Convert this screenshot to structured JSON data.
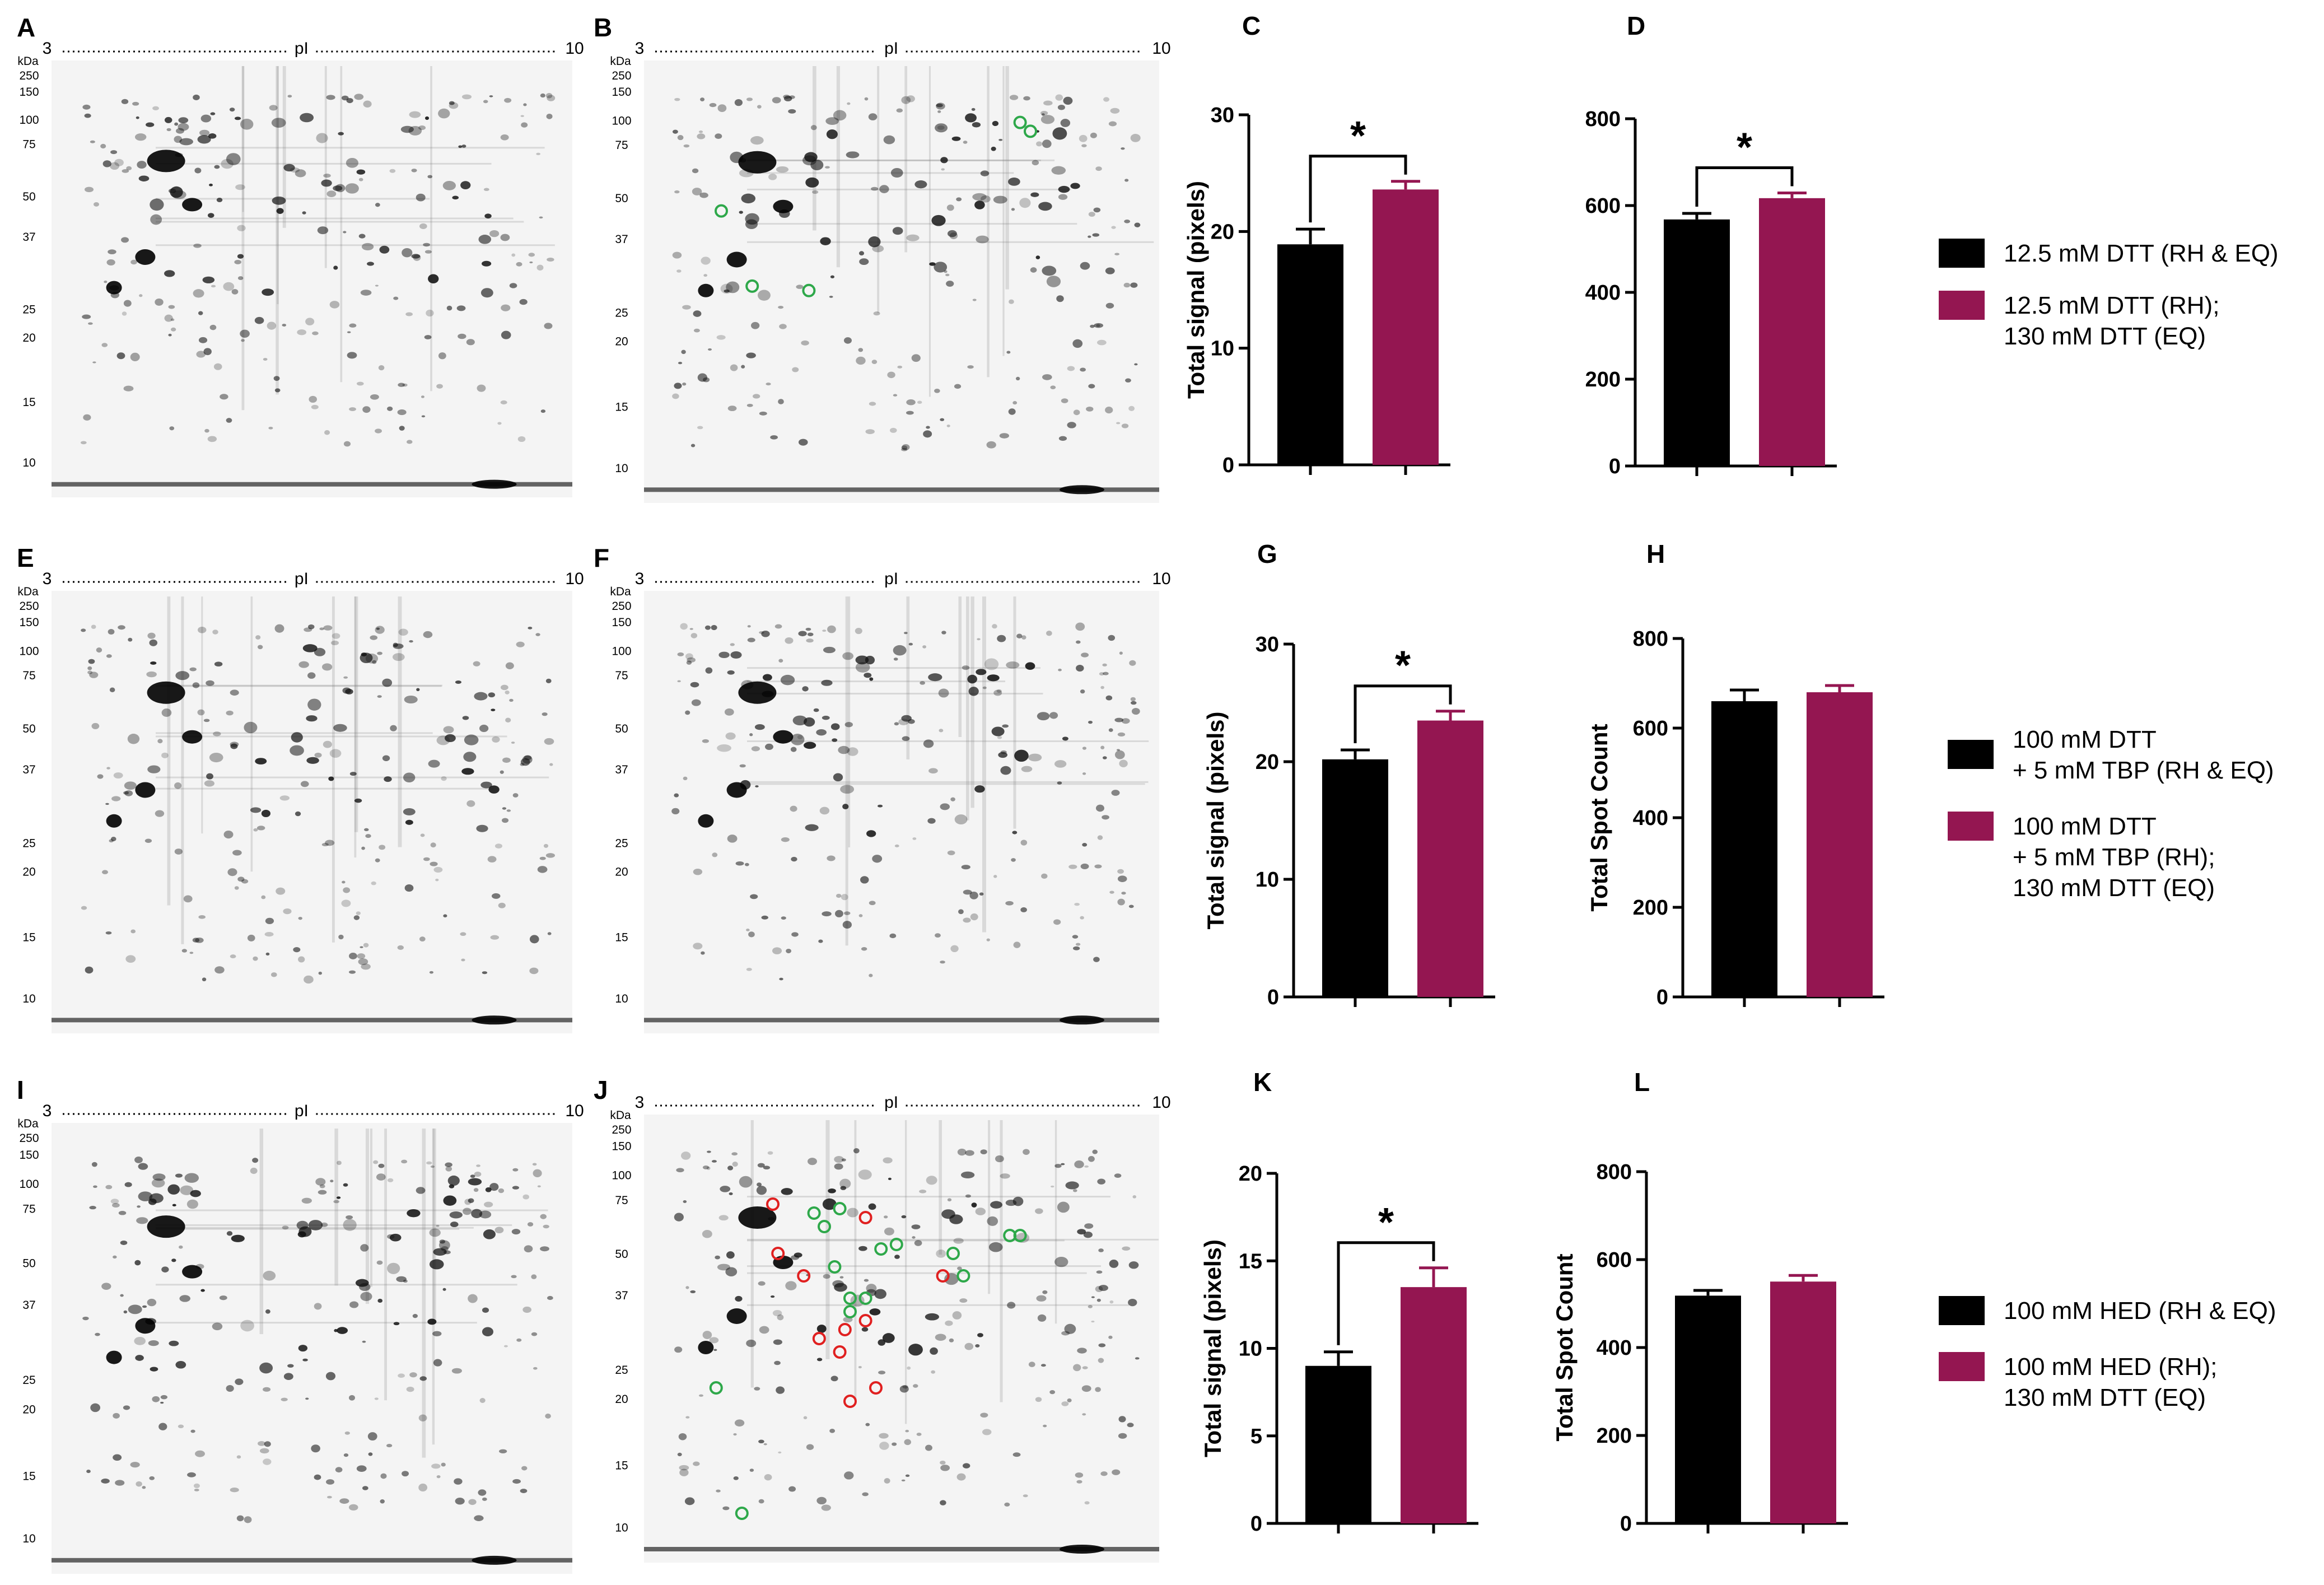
{
  "colors": {
    "black_bar": "#000000",
    "maroon_bar": "#941651",
    "green_circle": "#2ea84a",
    "red_circle": "#e02020"
  },
  "gels": [
    {
      "id": "A",
      "letter": "A",
      "pi_start": "3",
      "pi_label": "pI",
      "pi_end": "10",
      "kda_label": "kDa",
      "mw": [
        "250",
        "150",
        "100",
        "75",
        "50",
        "37",
        "25",
        "20",
        "15",
        "10"
      ]
    },
    {
      "id": "B",
      "letter": "B",
      "pi_start": "3",
      "pi_label": "pI",
      "pi_end": "10",
      "kda_label": "kDa",
      "mw": [
        "250",
        "150",
        "100",
        "75",
        "50",
        "37",
        "25",
        "20",
        "15",
        "10"
      ]
    },
    {
      "id": "E",
      "letter": "E",
      "pi_start": "3",
      "pi_label": "pI",
      "pi_end": "10",
      "kda_label": "kDa",
      "mw": [
        "250",
        "150",
        "100",
        "75",
        "50",
        "37",
        "25",
        "20",
        "15",
        "10"
      ]
    },
    {
      "id": "F",
      "letter": "F",
      "pi_start": "3",
      "pi_label": "pI",
      "pi_end": "10",
      "kda_label": "kDa",
      "mw": [
        "250",
        "150",
        "100",
        "75",
        "50",
        "37",
        "25",
        "20",
        "15",
        "10"
      ]
    },
    {
      "id": "I",
      "letter": "I",
      "pi_start": "3",
      "pi_label": "pI",
      "pi_end": "10",
      "kda_label": "kDa",
      "mw": [
        "250",
        "150",
        "100",
        "75",
        "50",
        "37",
        "25",
        "20",
        "15",
        "10"
      ]
    },
    {
      "id": "J",
      "letter": "J",
      "pi_start": "3",
      "pi_label": "pI",
      "pi_end": "10",
      "kda_label": "kDa",
      "mw": [
        "250",
        "150",
        "100",
        "75",
        "50",
        "37",
        "25",
        "20",
        "15",
        "10"
      ]
    }
  ],
  "chart_data": [
    {
      "id": "C",
      "letter": "C",
      "type": "bar",
      "ylabel": "Total signal (pixels)",
      "ylim": [
        0,
        30
      ],
      "yticks": [
        0,
        10,
        20,
        30
      ],
      "categories": [
        "12.5 mM DTT (RH & EQ)",
        "12.5 mM DTT (RH); 130 mM DTT (EQ)"
      ],
      "values": [
        18.9,
        23.6
      ],
      "errors": [
        1.3,
        0.7
      ],
      "significance": "*"
    },
    {
      "id": "D",
      "letter": "D",
      "type": "bar",
      "ylabel": "",
      "ylim": [
        0,
        800
      ],
      "yticks": [
        0,
        200,
        400,
        600,
        800
      ],
      "categories": [
        "12.5 mM DTT (RH & EQ)",
        "12.5 mM DTT (RH); 130 mM DTT (EQ)"
      ],
      "values": [
        568,
        617
      ],
      "errors": [
        14,
        12
      ],
      "significance": "*"
    },
    {
      "id": "G",
      "letter": "G",
      "type": "bar",
      "ylabel": "Total signal (pixels)",
      "ylim": [
        0,
        30
      ],
      "yticks": [
        0,
        10,
        20,
        30
      ],
      "categories": [
        "100 mM DTT + 5 mM TBP (RH & EQ)",
        "100 mM DTT + 5 mM TBP (RH); 130 mM DTT (EQ)"
      ],
      "values": [
        20.2,
        23.5
      ],
      "errors": [
        0.8,
        0.8
      ],
      "significance": "*"
    },
    {
      "id": "H",
      "letter": "H",
      "type": "bar",
      "ylabel": "Total Spot Count",
      "ylim": [
        0,
        800
      ],
      "yticks": [
        0,
        200,
        400,
        600,
        800
      ],
      "categories": [
        "100 mM DTT + 5 mM TBP (RH & EQ)",
        "100 mM DTT + 5 mM TBP (RH); 130 mM DTT (EQ)"
      ],
      "values": [
        660,
        680
      ],
      "errors": [
        25,
        15
      ],
      "significance": ""
    },
    {
      "id": "K",
      "letter": "K",
      "type": "bar",
      "ylabel": "Total signal (pixels)",
      "ylim": [
        0,
        20
      ],
      "yticks": [
        0,
        5,
        10,
        15,
        20
      ],
      "categories": [
        "100 mM HED (RH & EQ)",
        "100 mM HED (RH); 130 mM DTT (EQ)"
      ],
      "values": [
        9.0,
        13.5
      ],
      "errors": [
        0.8,
        1.1
      ],
      "significance": "*"
    },
    {
      "id": "L",
      "letter": "L",
      "type": "bar",
      "ylabel": "Total Spot Count",
      "ylim": [
        0,
        800
      ],
      "yticks": [
        0,
        200,
        400,
        600,
        800
      ],
      "categories": [
        "100 mM HED (RH & EQ)",
        "100 mM HED (RH); 130 mM DTT (EQ)"
      ],
      "values": [
        518,
        550
      ],
      "errors": [
        12,
        14
      ],
      "significance": ""
    }
  ],
  "legends": [
    {
      "id": "row1",
      "black_lines": [
        "12.5 mM DTT (RH & EQ)"
      ],
      "maroon_lines": [
        "12.5 mM DTT (RH);",
        "130 mM DTT (EQ)"
      ]
    },
    {
      "id": "row2",
      "black_lines": [
        "100 mM DTT",
        "+ 5 mM TBP (RH & EQ)"
      ],
      "maroon_lines": [
        "100 mM DTT",
        "+ 5 mM TBP (RH);",
        "130 mM DTT (EQ)"
      ]
    },
    {
      "id": "row3",
      "black_lines": [
        "100 mM HED (RH & EQ)"
      ],
      "maroon_lines": [
        "100 mM HED (RH);",
        "130 mM DTT (EQ)"
      ]
    }
  ]
}
